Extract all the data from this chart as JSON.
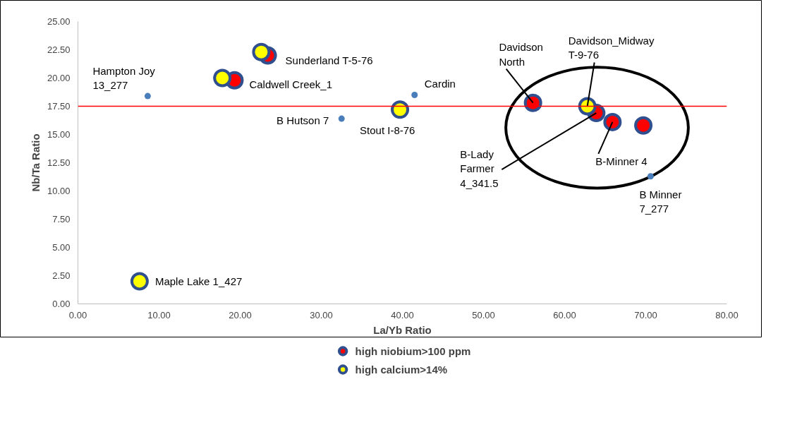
{
  "chart_data": {
    "type": "scatter",
    "xlabel": "La/Yb Ratio",
    "ylabel": "Nb/Ta Ratio",
    "xlim": [
      0,
      80
    ],
    "ylim": [
      0,
      25
    ],
    "xticks": [
      {
        "value": 0,
        "label": "0.00"
      },
      {
        "value": 10,
        "label": "10.00"
      },
      {
        "value": 20,
        "label": "20.00"
      },
      {
        "value": 30,
        "label": "30.00"
      },
      {
        "value": 40,
        "label": "40.00"
      },
      {
        "value": 50,
        "label": "50.00"
      },
      {
        "value": 60,
        "label": "60.00"
      },
      {
        "value": 70,
        "label": "70.00"
      },
      {
        "value": 80,
        "label": "80.00"
      }
    ],
    "yticks": [
      {
        "value": 0,
        "label": "0.00"
      },
      {
        "value": 2.5,
        "label": "2.50"
      },
      {
        "value": 5,
        "label": "5.00"
      },
      {
        "value": 7.5,
        "label": "7.50"
      },
      {
        "value": 10,
        "label": "10.00"
      },
      {
        "value": 12.5,
        "label": "12.50"
      },
      {
        "value": 15,
        "label": "15.00"
      },
      {
        "value": 17.5,
        "label": "17.50"
      },
      {
        "value": 20,
        "label": "20.00"
      },
      {
        "value": 22.5,
        "label": "22.50"
      },
      {
        "value": 25,
        "label": "25.00"
      }
    ],
    "grid": false,
    "legend": "bottom",
    "marker": "circle",
    "series": [
      {
        "color": "#4a7ebb",
        "x": [
          8.6,
          32.5,
          41.5,
          70.6
        ],
        "values": [
          18.4,
          16.4,
          18.5,
          11.3
        ]
      },
      {
        "name": "high niobium>100 ppm",
        "color": "#ff0000",
        "x": [
          19.3,
          23.4,
          56.1,
          63.9,
          65.9,
          69.7
        ],
        "values": [
          19.8,
          22.0,
          17.8,
          16.9,
          16.1,
          15.8
        ]
      },
      {
        "name": "high calcium>14%",
        "color": "#ffff00",
        "x": [
          7.6,
          17.8,
          22.6,
          39.7,
          62.8
        ],
        "values": [
          2.0,
          20.0,
          22.3,
          17.2,
          17.5
        ]
      }
    ],
    "ref_lines": [
      {
        "axis": "y",
        "value": 17.5,
        "color": "#ff0000"
      }
    ],
    "annotations": [
      {
        "text": "Hampton Joy\n13_277",
        "x": 8.6,
        "y": 18.4
      },
      {
        "text": "Maple Lake 1_427",
        "x": 7.6,
        "y": 2.0
      },
      {
        "text": "Caldwell Creek_1",
        "x": 19.3,
        "y": 19.8
      },
      {
        "text": "Sunderland T-5-76",
        "x": 23.4,
        "y": 22.0
      },
      {
        "text": "B Hutson 7",
        "x": 32.5,
        "y": 16.4
      },
      {
        "text": "Stout I-8-76",
        "x": 39.7,
        "y": 17.2
      },
      {
        "text": "Cardin",
        "x": 41.5,
        "y": 18.5
      },
      {
        "text": "Davidson\nNorth",
        "x": 56.1,
        "y": 17.8
      },
      {
        "text": "Davidson_Midway\nT-9-76",
        "x": 62.8,
        "y": 17.5
      },
      {
        "text": "B-Lady\nFarmer\n4_341.5",
        "x": 63.9,
        "y": 16.9
      },
      {
        "text": "B-Minner 4",
        "x": 65.9,
        "y": 16.1
      },
      {
        "text": "B Minner\n7_277",
        "x": 70.6,
        "y": 11.3
      }
    ]
  }
}
